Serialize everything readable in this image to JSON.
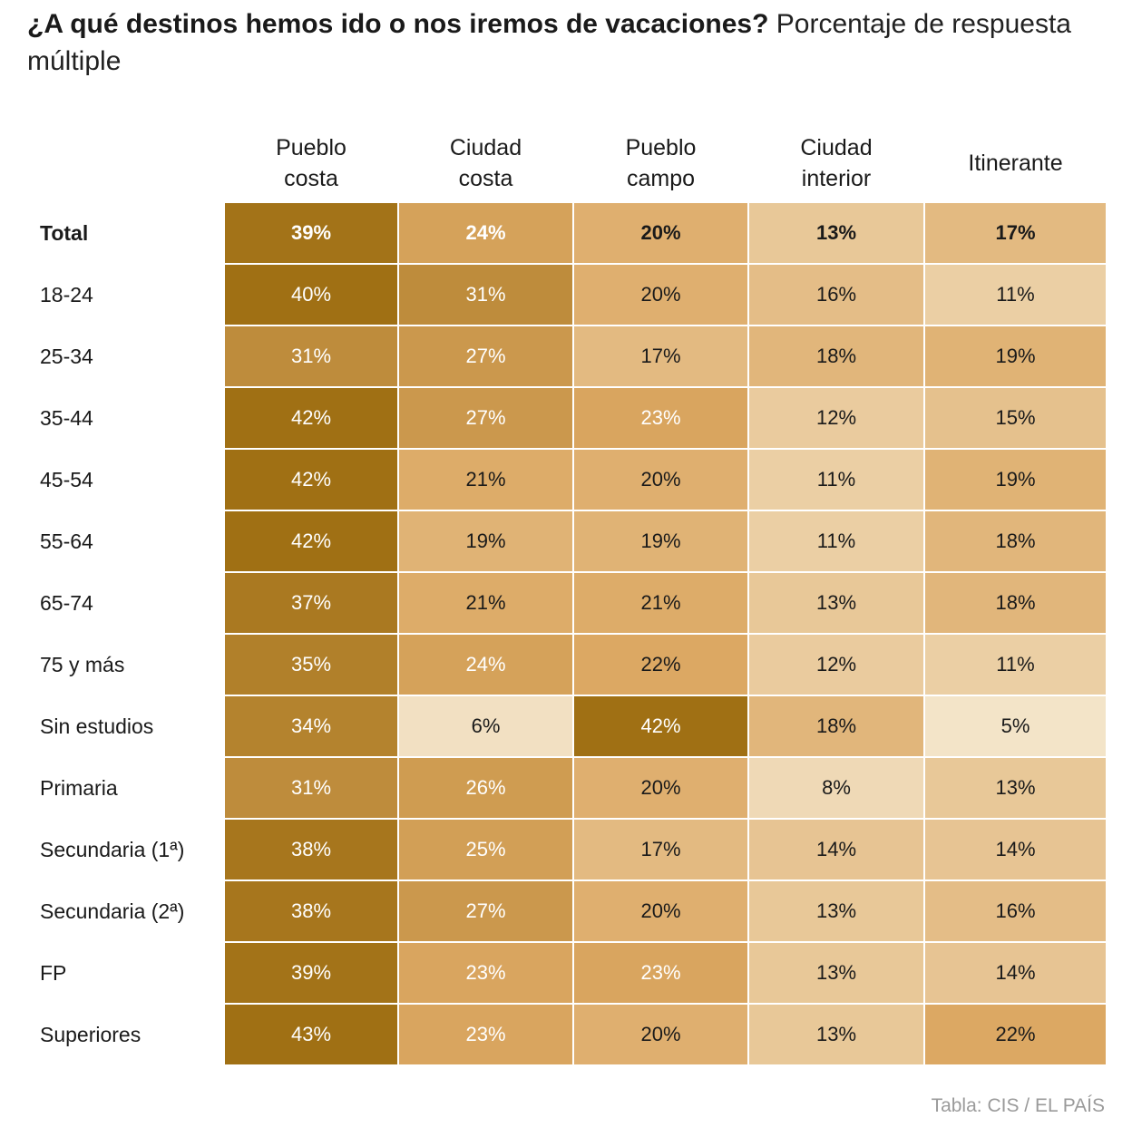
{
  "title": {
    "bold": "¿A qué destinos hemos ido o nos iremos de vacaciones?",
    "light": "Porcentaje de respuesta múltiple"
  },
  "chart_data": {
    "type": "table",
    "columns": [
      "Pueblo\ncosta",
      "Ciudad\ncosta",
      "Pueblo\ncampo",
      "Ciudad\ninterior",
      "Itinerante"
    ],
    "rows": [
      {
        "label": "Total",
        "values": [
          39,
          24,
          20,
          13,
          17
        ],
        "bold": true
      },
      {
        "label": "18-24",
        "values": [
          40,
          31,
          20,
          16,
          11
        ]
      },
      {
        "label": "25-34",
        "values": [
          31,
          27,
          17,
          18,
          19
        ]
      },
      {
        "label": "35-44",
        "values": [
          42,
          27,
          23,
          12,
          15
        ]
      },
      {
        "label": "45-54",
        "values": [
          42,
          21,
          20,
          11,
          19
        ]
      },
      {
        "label": "55-64",
        "values": [
          42,
          19,
          19,
          11,
          18
        ]
      },
      {
        "label": "65-74",
        "values": [
          37,
          21,
          21,
          13,
          18
        ]
      },
      {
        "label": "75 y más",
        "values": [
          35,
          24,
          22,
          12,
          11
        ]
      },
      {
        "label": "Sin estudios",
        "values": [
          34,
          6,
          42,
          18,
          5
        ]
      },
      {
        "label": "Primaria",
        "values": [
          31,
          26,
          20,
          8,
          13
        ]
      },
      {
        "label": "Secundaria (1ª)",
        "values": [
          38,
          25,
          17,
          14,
          14
        ]
      },
      {
        "label": "Secundaria (2ª)",
        "values": [
          38,
          27,
          20,
          13,
          16
        ]
      },
      {
        "label": "FP",
        "values": [
          39,
          23,
          23,
          13,
          14
        ]
      },
      {
        "label": "Superiores",
        "values": [
          43,
          23,
          20,
          13,
          22
        ]
      }
    ],
    "unit": "%",
    "color_scale": {
      "low": "#f3e4c8",
      "mid": "#dca863",
      "high": "#a07014"
    }
  },
  "source": "Tabla: CIS / EL PAÍS"
}
